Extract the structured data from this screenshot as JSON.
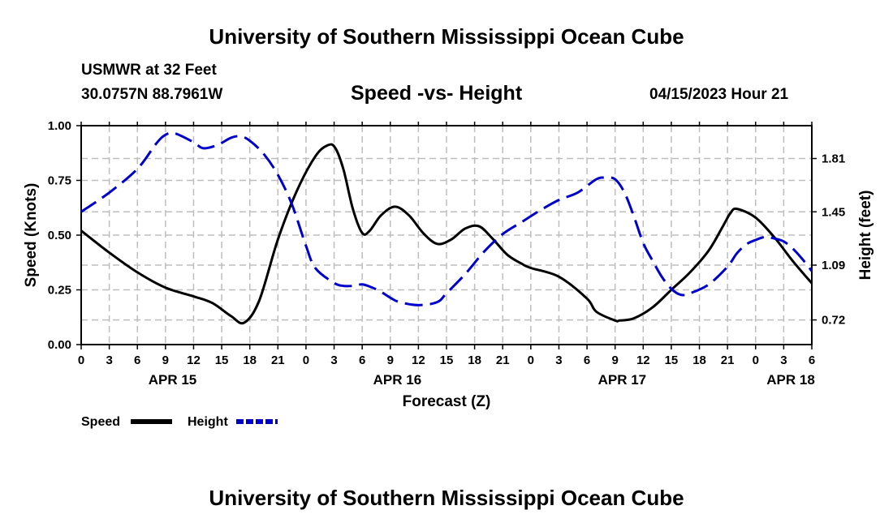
{
  "header": {
    "title": "University of Southern Mississippi Ocean Cube",
    "station": "USMWR at 32 Feet",
    "coords": "30.0757N  88.7961W",
    "subtitle": "Speed -vs- Height",
    "datetime": "04/15/2023 Hour 21"
  },
  "footer": {
    "title": "University of Southern Mississippi Ocean Cube"
  },
  "chart_data": {
    "type": "line",
    "title": "Speed -vs- Height",
    "xlabel": "Forecast (Z)",
    "ylabel": "Speed (Knots)",
    "y2label": "Height (feet)",
    "x_unit": "hours since 04/15 00Z",
    "xlim": [
      0,
      78
    ],
    "ylim": [
      0,
      1.0
    ],
    "y2lim": [
      0.5535,
      2.0319
    ],
    "x_ticks": [
      0,
      3,
      6,
      9,
      12,
      15,
      18,
      21,
      24,
      27,
      30,
      33,
      36,
      39,
      42,
      45,
      48,
      51,
      54,
      57,
      60,
      63,
      66,
      69,
      72,
      75,
      78
    ],
    "x_tick_labels": [
      "0",
      "3",
      "6",
      "9",
      "12",
      "15",
      "18",
      "21",
      "0",
      "3",
      "6",
      "9",
      "12",
      "15",
      "18",
      "21",
      "0",
      "3",
      "6",
      "9",
      "12",
      "15",
      "18",
      "21",
      "0",
      "3",
      "6"
    ],
    "date_labels": [
      {
        "x": 9.75,
        "label": "APR 15"
      },
      {
        "x": 33.75,
        "label": "APR 16"
      },
      {
        "x": 57.75,
        "label": "APR 17"
      },
      {
        "x": 75.75,
        "label": "APR 18"
      }
    ],
    "y_ticks": [
      0.0,
      0.25,
      0.5,
      0.75,
      1.0
    ],
    "y_tick_labels": [
      "0.00",
      "0.25",
      "0.50",
      "0.75",
      "1.00"
    ],
    "y2_ticks": [
      0.72,
      1.09,
      1.45,
      1.81
    ],
    "y2_tick_labels": [
      "0.72",
      "1.09",
      "1.45",
      "1.81"
    ],
    "grid": true,
    "legend": {
      "position": "bottom-left",
      "entries": [
        "Speed",
        "Height"
      ]
    },
    "series": [
      {
        "name": "Speed",
        "axis": "left",
        "color": "#000000",
        "dash": "solid",
        "x": [
          0,
          3,
          6,
          9,
          12,
          14,
          16,
          17.4,
          19,
          21,
          23,
          25,
          26.3,
          27.1,
          28,
          29,
          30,
          30.8,
          32,
          33.5,
          35,
          36.5,
          38,
          39.5,
          41,
          42.5,
          44,
          45.5,
          47,
          48,
          51,
          54,
          55,
          57,
          57.5,
          59,
          61,
          63,
          65,
          67,
          68.5,
          69.3,
          70,
          72,
          74,
          76,
          78
        ],
        "values": [
          0.52,
          0.42,
          0.33,
          0.26,
          0.22,
          0.19,
          0.13,
          0.1,
          0.2,
          0.48,
          0.7,
          0.86,
          0.91,
          0.9,
          0.8,
          0.62,
          0.51,
          0.52,
          0.59,
          0.63,
          0.59,
          0.51,
          0.46,
          0.48,
          0.53,
          0.54,
          0.48,
          0.41,
          0.37,
          0.35,
          0.31,
          0.21,
          0.15,
          0.11,
          0.11,
          0.12,
          0.17,
          0.25,
          0.33,
          0.43,
          0.54,
          0.6,
          0.62,
          0.58,
          0.49,
          0.38,
          0.28
        ]
      },
      {
        "name": "Height",
        "axis": "right",
        "color": "#0000cc",
        "dash": "dashed",
        "x": [
          0,
          3,
          6,
          8,
          9,
          10,
          12,
          13,
          14.5,
          16,
          17,
          18,
          19.5,
          21,
          22.5,
          24,
          25,
          27,
          28,
          29,
          30,
          31,
          32,
          33,
          34,
          36,
          38,
          39,
          41,
          43,
          45,
          47,
          49,
          51,
          53,
          55,
          56,
          57,
          58,
          59,
          60,
          61,
          62,
          63,
          64,
          65,
          67,
          69,
          70,
          71,
          72,
          73,
          74,
          75,
          76,
          77,
          78
        ],
        "values": [
          1.45,
          1.58,
          1.74,
          1.91,
          1.97,
          1.98,
          1.92,
          1.88,
          1.9,
          1.95,
          1.96,
          1.93,
          1.84,
          1.7,
          1.5,
          1.22,
          1.07,
          0.97,
          0.95,
          0.95,
          0.96,
          0.94,
          0.91,
          0.87,
          0.84,
          0.82,
          0.84,
          0.9,
          1.03,
          1.18,
          1.3,
          1.38,
          1.46,
          1.53,
          1.58,
          1.67,
          1.68,
          1.67,
          1.58,
          1.42,
          1.24,
          1.12,
          1.01,
          0.93,
          0.89,
          0.9,
          0.96,
          1.08,
          1.17,
          1.23,
          1.26,
          1.28,
          1.27,
          1.25,
          1.2,
          1.13,
          1.05
        ]
      }
    ]
  }
}
